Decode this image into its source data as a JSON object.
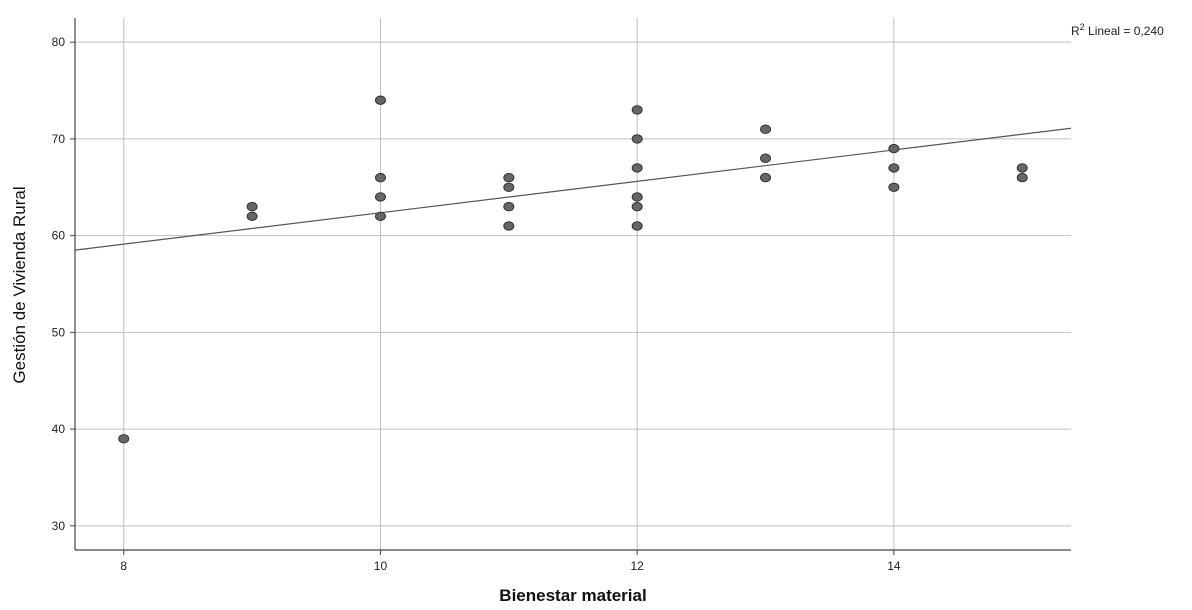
{
  "chart_data": {
    "type": "scatter",
    "xlabel": "Bienestar material",
    "ylabel": "Gestión de Vivienda Rural",
    "xlim": [
      7.62,
      15.38
    ],
    "ylim": [
      27.5,
      82.5
    ],
    "x_ticks": [
      8,
      10,
      12,
      14
    ],
    "y_ticks": [
      30,
      40,
      50,
      60,
      70,
      80
    ],
    "grid": true,
    "annotation": {
      "prefix": "R",
      "sup": "2",
      "text": " Lineal = 0,240"
    },
    "fit_line": {
      "type": "linear",
      "points": [
        [
          7.62,
          58.5
        ],
        [
          15.38,
          71.1
        ]
      ]
    },
    "points": [
      {
        "x": 8,
        "y": 39
      },
      {
        "x": 9,
        "y": 63
      },
      {
        "x": 9,
        "y": 62
      },
      {
        "x": 10,
        "y": 74
      },
      {
        "x": 10,
        "y": 66
      },
      {
        "x": 10,
        "y": 64
      },
      {
        "x": 10,
        "y": 62
      },
      {
        "x": 11,
        "y": 66
      },
      {
        "x": 11,
        "y": 65
      },
      {
        "x": 11,
        "y": 63
      },
      {
        "x": 11,
        "y": 61
      },
      {
        "x": 12,
        "y": 73
      },
      {
        "x": 12,
        "y": 70
      },
      {
        "x": 12,
        "y": 67
      },
      {
        "x": 12,
        "y": 64
      },
      {
        "x": 12,
        "y": 63
      },
      {
        "x": 12,
        "y": 61
      },
      {
        "x": 13,
        "y": 71
      },
      {
        "x": 13,
        "y": 68
      },
      {
        "x": 13,
        "y": 66
      },
      {
        "x": 14,
        "y": 69
      },
      {
        "x": 14,
        "y": 67
      },
      {
        "x": 14,
        "y": 65
      },
      {
        "x": 15,
        "y": 67
      },
      {
        "x": 15,
        "y": 66
      }
    ],
    "colors": {
      "point_fill": "#666666",
      "point_stroke": "#333333",
      "grid": "#bfbfbf",
      "axis": "#444444",
      "fit_line": "#555555"
    }
  }
}
